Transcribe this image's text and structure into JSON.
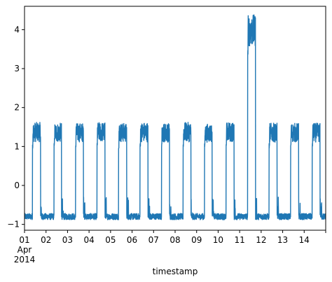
{
  "chart_data": {
    "type": "line",
    "title": "",
    "xlabel": "timestamp",
    "ylabel": "",
    "line_color": "#1f77b4",
    "grid": false,
    "legend": "none",
    "xlim_days": [
      1,
      15
    ],
    "ylim": [
      -1.15,
      4.6
    ],
    "x_ticks": [
      {
        "value": 1,
        "label": "01"
      },
      {
        "value": 2,
        "label": "02"
      },
      {
        "value": 3,
        "label": "03"
      },
      {
        "value": 4,
        "label": "04"
      },
      {
        "value": 5,
        "label": "05"
      },
      {
        "value": 6,
        "label": "06"
      },
      {
        "value": 7,
        "label": "07"
      },
      {
        "value": 8,
        "label": "08"
      },
      {
        "value": 9,
        "label": "09"
      },
      {
        "value": 10,
        "label": "10"
      },
      {
        "value": 11,
        "label": "11"
      },
      {
        "value": 12,
        "label": "12"
      },
      {
        "value": 13,
        "label": "13"
      },
      {
        "value": 14,
        "label": "14"
      }
    ],
    "x_sublabels": [
      "Apr",
      "2014"
    ],
    "y_ticks": [
      -1,
      0,
      1,
      2,
      3,
      4
    ],
    "series": [
      {
        "low_level": [
          -0.88,
          -0.72
        ],
        "daily_pulses": [
          {
            "day": 1,
            "start": 1.37,
            "end": 1.75,
            "low": 0.95,
            "high": 1.62
          },
          {
            "day": 2,
            "start": 2.37,
            "end": 2.72,
            "low": 0.95,
            "high": 1.6
          },
          {
            "day": 3,
            "start": 3.37,
            "end": 3.74,
            "low": 0.95,
            "high": 1.6
          },
          {
            "day": 4,
            "start": 4.37,
            "end": 4.74,
            "low": 0.95,
            "high": 1.62
          },
          {
            "day": 5,
            "start": 5.37,
            "end": 5.75,
            "low": 0.95,
            "high": 1.6
          },
          {
            "day": 6,
            "start": 6.37,
            "end": 6.74,
            "low": 0.95,
            "high": 1.62
          },
          {
            "day": 7,
            "start": 7.37,
            "end": 7.74,
            "low": 0.95,
            "high": 1.6
          },
          {
            "day": 8,
            "start": 8.37,
            "end": 8.74,
            "low": 0.95,
            "high": 1.62
          },
          {
            "day": 9,
            "start": 9.37,
            "end": 9.72,
            "low": 0.95,
            "high": 1.58
          },
          {
            "day": 10,
            "start": 10.37,
            "end": 10.74,
            "low": 0.95,
            "high": 1.62
          },
          {
            "day": 11,
            "start": 11.37,
            "end": 11.74,
            "low": 3.3,
            "high": 4.38
          },
          {
            "day": 12,
            "start": 12.37,
            "end": 12.74,
            "low": 0.95,
            "high": 1.6
          },
          {
            "day": 13,
            "start": 13.37,
            "end": 13.74,
            "low": 0.95,
            "high": 1.6
          },
          {
            "day": 14,
            "start": 14.37,
            "end": 14.74,
            "low": 0.95,
            "high": 1.6
          }
        ]
      }
    ]
  }
}
